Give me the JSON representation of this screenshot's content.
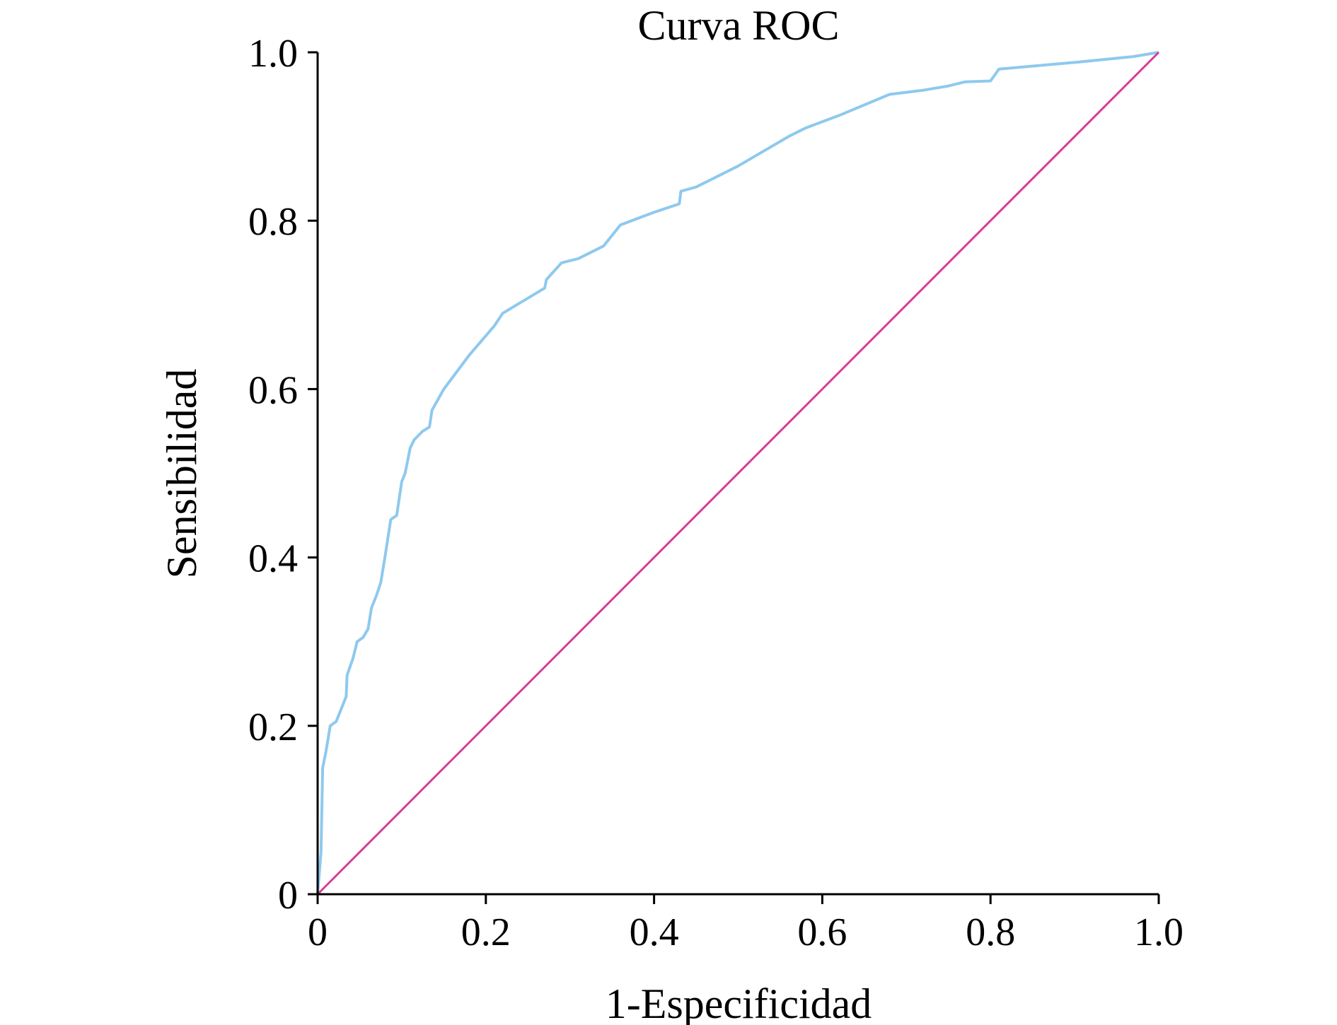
{
  "chart_data": {
    "type": "line",
    "title": "Curva ROC",
    "xlabel": "1-Especificidad",
    "ylabel": "Sensibilidad",
    "xlim": [
      0,
      1
    ],
    "ylim": [
      0,
      1
    ],
    "grid": false,
    "x_ticks": [
      {
        "value": 0,
        "label": "0"
      },
      {
        "value": 0.2,
        "label": "0.2"
      },
      {
        "value": 0.4,
        "label": "0.4"
      },
      {
        "value": 0.6,
        "label": "0.6"
      },
      {
        "value": 0.8,
        "label": "0.8"
      },
      {
        "value": 1.0,
        "label": "1.0"
      }
    ],
    "y_ticks": [
      {
        "value": 0,
        "label": "0"
      },
      {
        "value": 0.2,
        "label": "0.2"
      },
      {
        "value": 0.4,
        "label": "0.4"
      },
      {
        "value": 0.6,
        "label": "0.6"
      },
      {
        "value": 0.8,
        "label": "0.8"
      },
      {
        "value": 1.0,
        "label": "1.0"
      }
    ],
    "series": [
      {
        "color": "#8ec9ee",
        "points": [
          [
            0,
            0
          ],
          [
            0.004,
            0.05
          ],
          [
            0.006,
            0.15
          ],
          [
            0.01,
            0.17
          ],
          [
            0.015,
            0.2
          ],
          [
            0.022,
            0.205
          ],
          [
            0.03,
            0.225
          ],
          [
            0.034,
            0.235
          ],
          [
            0.035,
            0.26
          ],
          [
            0.042,
            0.28
          ],
          [
            0.047,
            0.3
          ],
          [
            0.054,
            0.305
          ],
          [
            0.06,
            0.315
          ],
          [
            0.064,
            0.34
          ],
          [
            0.07,
            0.355
          ],
          [
            0.075,
            0.37
          ],
          [
            0.08,
            0.4
          ],
          [
            0.087,
            0.445
          ],
          [
            0.094,
            0.45
          ],
          [
            0.1,
            0.49
          ],
          [
            0.104,
            0.5
          ],
          [
            0.11,
            0.53
          ],
          [
            0.115,
            0.54
          ],
          [
            0.125,
            0.55
          ],
          [
            0.133,
            0.555
          ],
          [
            0.136,
            0.575
          ],
          [
            0.15,
            0.6
          ],
          [
            0.18,
            0.64
          ],
          [
            0.21,
            0.675
          ],
          [
            0.22,
            0.69
          ],
          [
            0.245,
            0.705
          ],
          [
            0.27,
            0.72
          ],
          [
            0.272,
            0.73
          ],
          [
            0.29,
            0.75
          ],
          [
            0.31,
            0.755
          ],
          [
            0.34,
            0.77
          ],
          [
            0.36,
            0.795
          ],
          [
            0.4,
            0.81
          ],
          [
            0.43,
            0.82
          ],
          [
            0.432,
            0.835
          ],
          [
            0.45,
            0.84
          ],
          [
            0.5,
            0.865
          ],
          [
            0.56,
            0.9
          ],
          [
            0.58,
            0.91
          ],
          [
            0.62,
            0.925
          ],
          [
            0.68,
            0.95
          ],
          [
            0.72,
            0.955
          ],
          [
            0.75,
            0.96
          ],
          [
            0.77,
            0.965
          ],
          [
            0.8,
            0.966
          ],
          [
            0.81,
            0.98
          ],
          [
            0.9,
            0.988
          ],
          [
            0.97,
            0.995
          ],
          [
            1.0,
            1.0
          ]
        ]
      },
      {
        "color": "#d83c97",
        "points": [
          [
            0,
            0
          ],
          [
            1,
            1
          ]
        ]
      }
    ]
  }
}
